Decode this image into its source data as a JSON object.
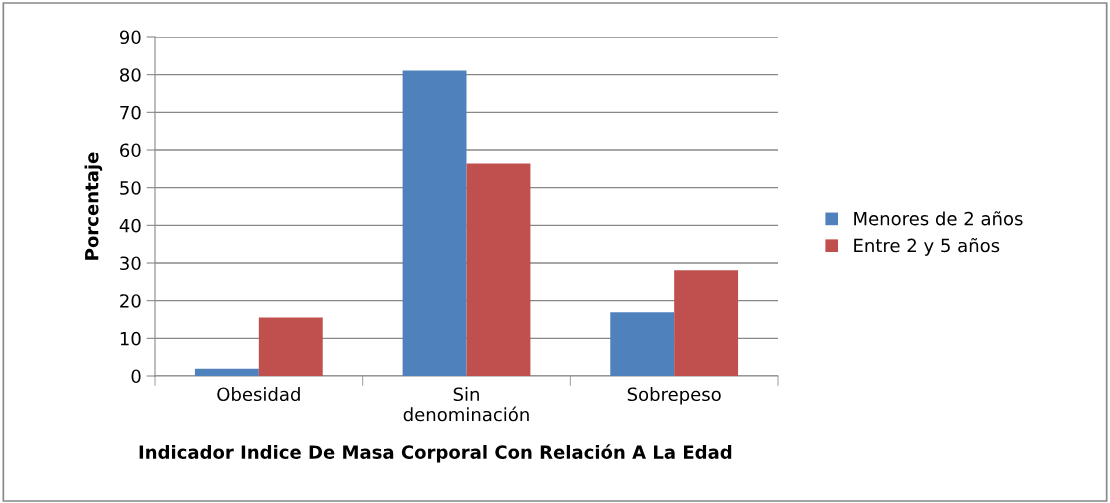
{
  "chart_data": {
    "type": "bar",
    "xlabel": "Indicador Indice De Masa Corporal Con Relación A La Edad",
    "ylabel": "Porcentaje",
    "categories": [
      "Obesidad",
      "Sin denominación",
      "Sobrepeso"
    ],
    "series": [
      {
        "name": "Menores de 2 años",
        "color": "#4f81bd",
        "values": [
          1.9,
          81.1,
          16.9
        ]
      },
      {
        "name": "Entre 2 y 5 años",
        "color": "#c0504d",
        "values": [
          15.5,
          56.4,
          28.1
        ]
      }
    ],
    "ylim": [
      0,
      90
    ],
    "yticks": [
      0,
      10,
      20,
      30,
      40,
      50,
      60,
      70,
      80,
      90
    ],
    "grid": "y",
    "legend": "right"
  }
}
